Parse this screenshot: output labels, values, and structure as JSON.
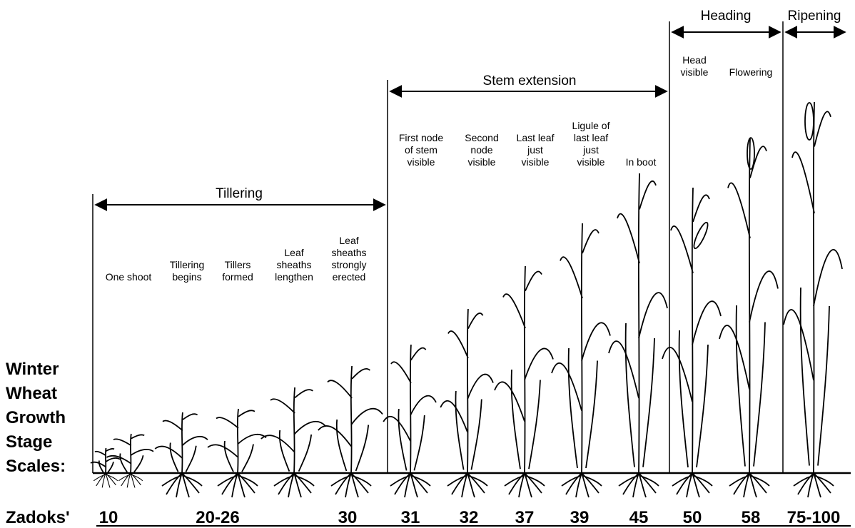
{
  "title_lines": [
    "Winter",
    "Wheat",
    "Growth",
    "Stage",
    "Scales:"
  ],
  "phases": [
    {
      "label": "Tillering"
    },
    {
      "label": "Stem extension"
    },
    {
      "label": "Heading"
    },
    {
      "label": "Ripening"
    }
  ],
  "stages": [
    {
      "lines": [
        "One shoot"
      ]
    },
    {
      "lines": [
        "Tillering",
        "begins"
      ]
    },
    {
      "lines": [
        "Tillers",
        "formed"
      ]
    },
    {
      "lines": [
        "Leaf",
        "sheaths",
        "lengthen"
      ]
    },
    {
      "lines": [
        "Leaf",
        "sheaths",
        "strongly",
        "erected"
      ]
    },
    {
      "lines": [
        "First node",
        "of stem",
        "visible"
      ]
    },
    {
      "lines": [
        "Second",
        "node",
        "visible"
      ]
    },
    {
      "lines": [
        "Last leaf",
        "just",
        "visible"
      ]
    },
    {
      "lines": [
        "Ligule of",
        "last leaf",
        "just",
        "visible"
      ]
    },
    {
      "lines": [
        "In boot"
      ]
    },
    {
      "lines": [
        "Head",
        "visible"
      ]
    },
    {
      "lines": [
        "Flowering"
      ]
    }
  ],
  "zadoks": {
    "label": "Zadoks'",
    "values": [
      "10",
      "20-26",
      "30",
      "31",
      "32",
      "37",
      "39",
      "45",
      "50",
      "58",
      "75-100"
    ]
  }
}
